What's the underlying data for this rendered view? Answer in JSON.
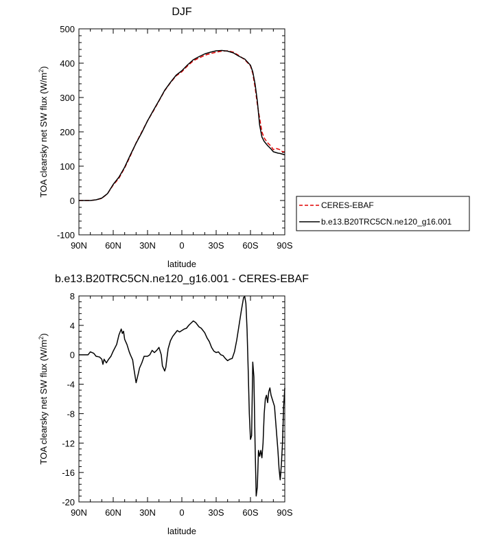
{
  "chart_data": [
    {
      "type": "line",
      "title": "DJF",
      "xlabel": "latitude",
      "ylabel": "TOA clearsky net SW flux (W/m",
      "ylabel_sup": "2",
      "ylabel_close": ")",
      "xlim": [
        90,
        -90
      ],
      "ylim": [
        -100,
        500
      ],
      "x_ticks": [
        90,
        60,
        30,
        0,
        -30,
        -60,
        -90
      ],
      "x_tick_labels": [
        "90N",
        "60N",
        "30N",
        "0",
        "30S",
        "60S",
        "90S"
      ],
      "y_ticks": [
        -100,
        0,
        100,
        200,
        300,
        400,
        500
      ],
      "y_tick_labels": [
        "-100",
        "0",
        "100",
        "200",
        "300",
        "400",
        "500"
      ],
      "legend_position": "right",
      "series": [
        {
          "name": "CERES-EBAF",
          "style": "dashed",
          "color": "#e00000",
          "x": [
            90,
            85,
            80,
            75,
            70,
            65,
            60,
            55,
            50,
            45,
            40,
            35,
            30,
            25,
            20,
            15,
            10,
            5,
            0,
            -5,
            -10,
            -15,
            -20,
            -25,
            -30,
            -35,
            -40,
            -45,
            -50,
            -55,
            -60,
            -62,
            -64,
            -66,
            -68,
            -70,
            -72,
            -75,
            -78,
            -80,
            -82,
            -84,
            -86,
            -88,
            -90
          ],
          "y": [
            0,
            0,
            0,
            2,
            6,
            20,
            45,
            65,
            95,
            130,
            168,
            200,
            232,
            260,
            290,
            320,
            343,
            363,
            375,
            392,
            407,
            415,
            423,
            428,
            432,
            435,
            436,
            432,
            422,
            410,
            392,
            370,
            330,
            280,
            240,
            200,
            182,
            168,
            158,
            148,
            152,
            150,
            148,
            142,
            142
          ]
        },
        {
          "name": "b.e13.B20TRC5CN.ne120_g16.001",
          "style": "solid",
          "color": "#000000",
          "x": [
            90,
            85,
            80,
            75,
            70,
            65,
            60,
            55,
            50,
            45,
            40,
            35,
            30,
            25,
            20,
            15,
            10,
            5,
            0,
            -5,
            -10,
            -15,
            -20,
            -25,
            -30,
            -35,
            -40,
            -45,
            -50,
            -55,
            -60,
            -62,
            -64,
            -66,
            -68,
            -70,
            -72,
            -75,
            -78,
            -80,
            -82,
            -84,
            -86,
            -88,
            -90
          ],
          "y": [
            0,
            0,
            0,
            2,
            7,
            20,
            47,
            68,
            97,
            133,
            167,
            198,
            232,
            262,
            291,
            321,
            344,
            365,
            378,
            395,
            410,
            419,
            427,
            432,
            436,
            437,
            435,
            430,
            420,
            412,
            394,
            375,
            340,
            290,
            220,
            185,
            172,
            160,
            150,
            142,
            140,
            138,
            137,
            135,
            133
          ]
        }
      ]
    },
    {
      "type": "line",
      "title": "b.e13.B20TRC5CN.ne120_g16.001 - CERES-EBAF",
      "xlabel": "latitude",
      "ylabel": "TOA clearsky net SW flux (W/m",
      "ylabel_sup": "2",
      "ylabel_close": ")",
      "xlim": [
        90,
        -90
      ],
      "ylim": [
        -20,
        8
      ],
      "x_ticks": [
        90,
        60,
        30,
        0,
        -30,
        -60,
        -90
      ],
      "x_tick_labels": [
        "90N",
        "60N",
        "30N",
        "0",
        "30S",
        "60S",
        "90S"
      ],
      "y_ticks": [
        -20,
        -16,
        -12,
        -8,
        -4,
        0,
        4,
        8
      ],
      "y_tick_labels": [
        "-20",
        "-16",
        "-12",
        "-8",
        "-4",
        "0",
        "4",
        "8"
      ],
      "series": [
        {
          "style": "solid",
          "color": "#000000",
          "x": [
            90,
            82,
            80,
            77,
            75,
            72,
            70,
            69,
            68,
            66,
            64,
            62,
            60,
            57,
            55,
            53,
            52,
            51,
            50,
            48,
            46,
            45,
            43,
            42,
            40,
            38,
            37,
            35,
            33,
            30,
            28,
            26,
            24,
            22,
            20,
            18,
            17,
            15,
            14,
            13,
            12,
            10,
            8,
            6,
            4,
            2,
            0,
            -2,
            -4,
            -6,
            -8,
            -10,
            -12,
            -15,
            -17,
            -20,
            -22,
            -24,
            -26,
            -28,
            -30,
            -32,
            -34,
            -36,
            -38,
            -40,
            -42,
            -44,
            -46,
            -48,
            -50,
            -52,
            -54,
            -55,
            -56,
            -57,
            -58,
            -59,
            -60,
            -61,
            -62,
            -63,
            -64,
            -65,
            -66,
            -67,
            -68,
            -69,
            -70,
            -71,
            -72,
            -73,
            -74,
            -75,
            -76,
            -77,
            -78,
            -79,
            -80,
            -81,
            -82,
            -83,
            -84,
            -85,
            -86,
            -87,
            -88,
            -89,
            -90
          ],
          "y": [
            0,
            0,
            0.4,
            0.2,
            -0.2,
            -0.3,
            -0.6,
            -1.3,
            -0.6,
            -1.1,
            -0.6,
            -0.2,
            0.5,
            1.4,
            2.7,
            3.5,
            2.9,
            3.2,
            2.1,
            1.4,
            0.4,
            0.0,
            -0.7,
            -1.8,
            -3.8,
            -2.5,
            -1.8,
            -1.1,
            -0.2,
            -0.2,
            0.0,
            0.6,
            0.3,
            0.6,
            1.0,
            0.0,
            -1.5,
            -2.2,
            -1.7,
            -0.4,
            0.8,
            1.9,
            2.5,
            2.9,
            3.3,
            3.1,
            3.3,
            3.5,
            3.6,
            4.0,
            4.3,
            4.6,
            4.4,
            3.8,
            3.6,
            3.0,
            2.3,
            1.8,
            1.0,
            0.5,
            0.3,
            0.4,
            0.0,
            -0.1,
            -0.5,
            -0.8,
            -0.6,
            -0.5,
            0.4,
            2.0,
            4.0,
            6.0,
            7.8,
            7.9,
            7.0,
            3.5,
            -2.0,
            -8.0,
            -11.5,
            -11.0,
            -1.0,
            -3.0,
            -12.0,
            -19.2,
            -18.0,
            -13.0,
            -13.8,
            -13.0,
            -14.0,
            -12.0,
            -8.0,
            -6.0,
            -5.5,
            -6.5,
            -5.0,
            -4.5,
            -5.5,
            -6.0,
            -6.5,
            -7.0,
            -9.0,
            -11.0,
            -13.0,
            -15.5,
            -17.0,
            -15.0,
            -12.0,
            -7.0,
            -4.5
          ]
        }
      ]
    }
  ]
}
